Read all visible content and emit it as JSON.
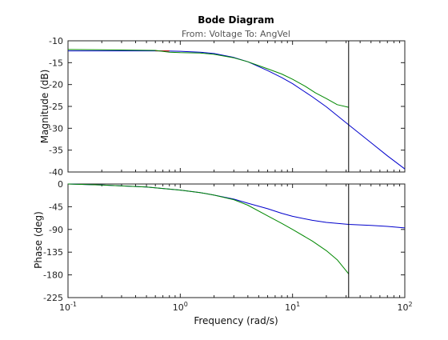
{
  "chart_data": {
    "type": "line",
    "title": "Bode Diagram",
    "subtitle": "From: Voltage  To: AngVel",
    "xlabel": "Frequency  (rad/s)",
    "x_scale": "log",
    "xlim": [
      0.1,
      100
    ],
    "x_ticks": [
      {
        "value": 0.1,
        "base": "10",
        "exp": "-1"
      },
      {
        "value": 1,
        "base": "10",
        "exp": "0"
      },
      {
        "value": 10,
        "base": "10",
        "exp": "1"
      },
      {
        "value": 100,
        "base": "10",
        "exp": "2"
      }
    ],
    "vertical_marker_x": 31.6,
    "grid": false,
    "panels": [
      {
        "id": "magnitude",
        "ylabel": "Magnitude (dB)",
        "ylim": [
          -40,
          -10
        ],
        "y_ticks": [
          -10,
          -15,
          -20,
          -25,
          -30,
          -35,
          -40
        ],
        "series": [
          {
            "color": "#0000cc",
            "x": [
              0.1,
              0.3,
              0.7,
              1.0,
              1.5,
              2.0,
              3.0,
              4.0,
              6.0,
              8.0,
              10,
              15,
              20,
              31.6,
              50,
              70,
              100
            ],
            "y": [
              -12.3,
              -12.3,
              -12.3,
              -12.4,
              -12.6,
              -12.9,
              -13.8,
              -14.8,
              -16.8,
              -18.4,
              -19.8,
              -22.8,
              -25.1,
              -29.2,
              -33.3,
              -36.3,
              -39.3
            ]
          },
          {
            "color": "#cc0000",
            "x": [
              0.6,
              0.7,
              0.8
            ],
            "y": [
              -12.3,
              -12.3,
              -12.3
            ]
          },
          {
            "color": "#008800",
            "x": [
              0.1,
              0.3,
              0.6,
              0.8,
              1.0,
              1.5,
              2.0,
              3.0,
              4.0,
              6.0,
              8.0,
              10,
              13,
              16,
              20,
              25,
              31.6
            ],
            "y": [
              -12.0,
              -12.1,
              -12.2,
              -12.6,
              -12.7,
              -12.8,
              -13.1,
              -13.9,
              -14.8,
              -16.4,
              -17.6,
              -18.8,
              -20.4,
              -21.9,
              -23.2,
              -24.6,
              -25.2
            ]
          }
        ]
      },
      {
        "id": "phase",
        "ylabel": "Phase (deg)",
        "ylim": [
          -225,
          0
        ],
        "y_ticks": [
          0,
          -45,
          -90,
          -135,
          -180,
          -225
        ],
        "series": [
          {
            "color": "#0000cc",
            "x": [
              0.1,
              0.2,
              0.5,
              1.0,
              1.5,
              2.0,
              3.0,
              4.0,
              6.0,
              8.0,
              10,
              15,
              20,
              31.6,
              50,
              70,
              100
            ],
            "y": [
              0,
              -2,
              -6,
              -12,
              -17,
              -22,
              -30,
              -38,
              -49,
              -58,
              -64,
              -72,
              -76,
              -80,
              -82,
              -84,
              -87
            ]
          },
          {
            "color": "#008800",
            "x": [
              0.1,
              0.2,
              0.5,
              1.0,
              1.5,
              2.0,
              3.0,
              4.0,
              6.0,
              8.0,
              10,
              15,
              20,
              25,
              31.6
            ],
            "y": [
              0,
              -2,
              -6,
              -12,
              -17,
              -22,
              -31,
              -42,
              -63,
              -78,
              -90,
              -113,
              -132,
              -150,
              -178
            ]
          }
        ]
      }
    ]
  }
}
